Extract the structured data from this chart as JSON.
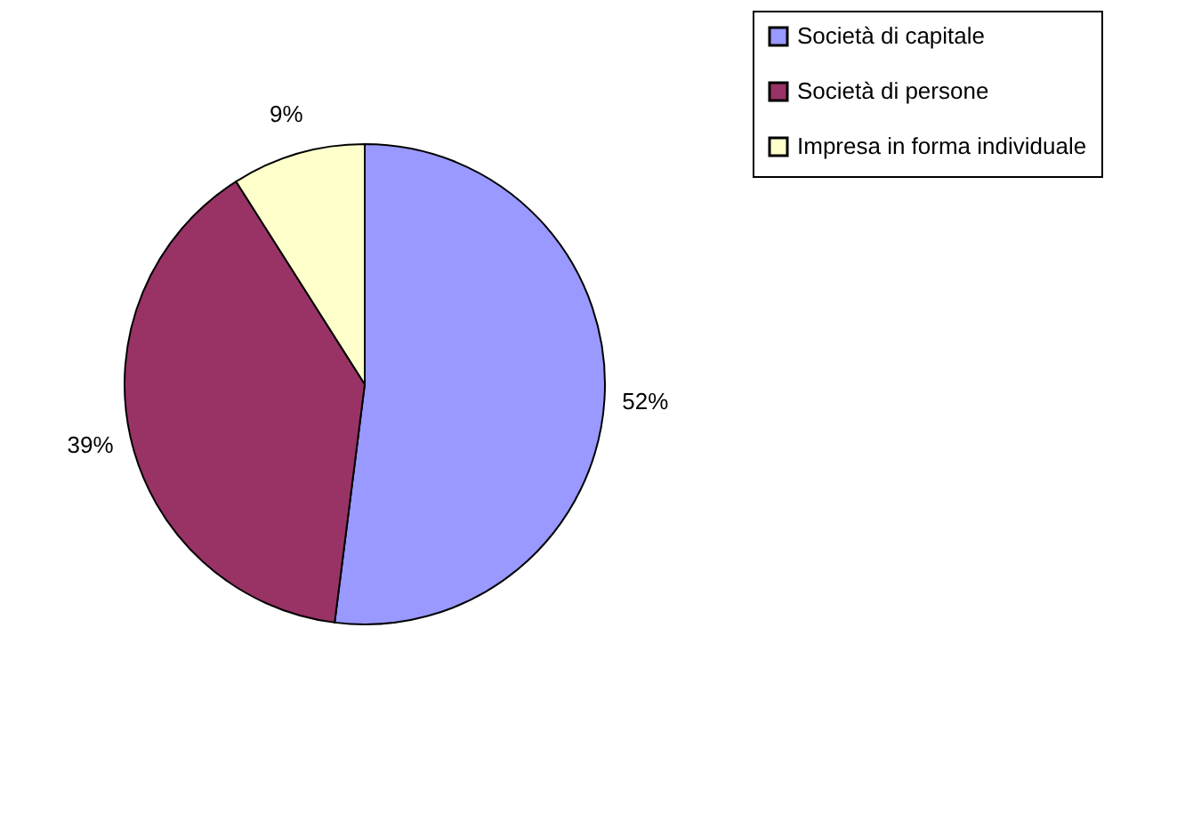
{
  "chart_data": {
    "type": "pie",
    "categories": [
      "Società di capitale",
      "Società di persone",
      "Impresa in forma individuale"
    ],
    "values": [
      52,
      39,
      9
    ],
    "value_labels": [
      "52%",
      "39%",
      "9%"
    ],
    "colors": [
      "#9999ff",
      "#993366",
      "#ffffcc"
    ],
    "legend": "right"
  }
}
